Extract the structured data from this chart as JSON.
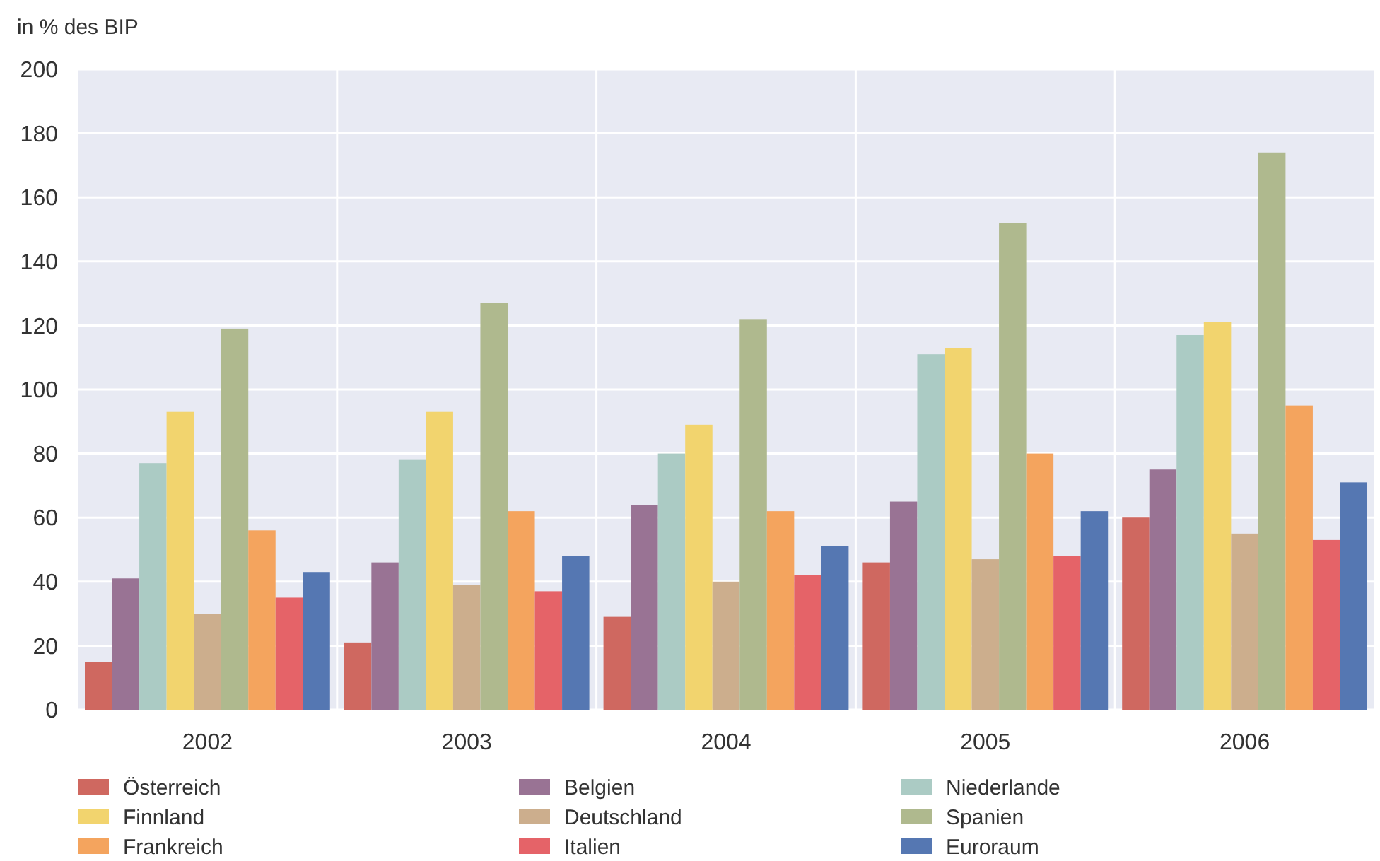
{
  "chart_data": {
    "type": "bar",
    "ylabel": "in % des BIP",
    "categories": [
      "2002",
      "2003",
      "2004",
      "2005",
      "2006"
    ],
    "series": [
      {
        "name": "Österreich",
        "color": "#cf6860",
        "values": [
          15,
          21,
          29,
          46,
          60
        ]
      },
      {
        "name": "Belgien",
        "color": "#997394",
        "values": [
          41,
          46,
          64,
          65,
          75
        ]
      },
      {
        "name": "Niederlande",
        "color": "#abcbc4",
        "values": [
          77,
          78,
          80,
          111,
          117
        ]
      },
      {
        "name": "Finnland",
        "color": "#f2d46e",
        "values": [
          93,
          93,
          89,
          113,
          121
        ]
      },
      {
        "name": "Deutschland",
        "color": "#ccae8d",
        "values": [
          30,
          39,
          40,
          47,
          55
        ]
      },
      {
        "name": "Spanien",
        "color": "#afb98e",
        "values": [
          119,
          127,
          122,
          152,
          174
        ]
      },
      {
        "name": "Frankreich",
        "color": "#f4a45e",
        "values": [
          56,
          62,
          62,
          80,
          95
        ]
      },
      {
        "name": "Italien",
        "color": "#e56368",
        "values": [
          35,
          37,
          42,
          48,
          53
        ]
      },
      {
        "name": "Euroraum",
        "color": "#5577b2",
        "values": [
          43,
          48,
          51,
          62,
          71
        ]
      }
    ],
    "ylim": [
      0,
      200
    ],
    "yticks": [
      0,
      20,
      40,
      60,
      80,
      100,
      120,
      140,
      160,
      180,
      200
    ],
    "grid": true,
    "legend": "bottom"
  }
}
